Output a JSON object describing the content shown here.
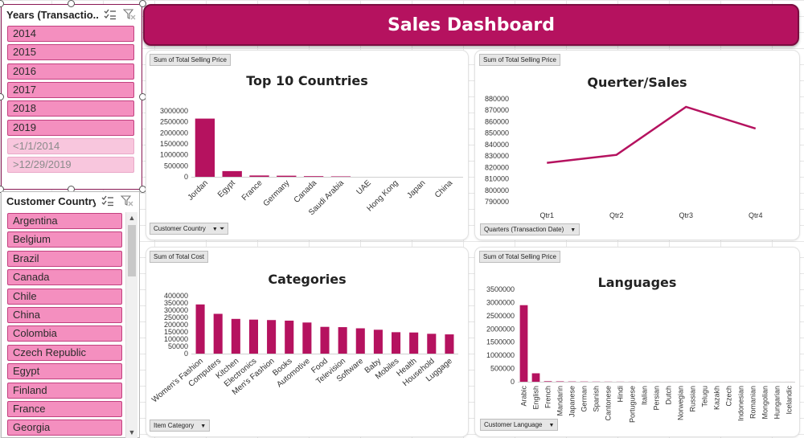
{
  "app": {
    "dashboard_title": "Sales Dashboard"
  },
  "colors": {
    "accent": "#b5125f",
    "slicer_item": "#f48fbf",
    "slicer_item_nodata": "#f8c6dd"
  },
  "years_slicer": {
    "title": "Years (Transactio...",
    "items": [
      "2014",
      "2015",
      "2016",
      "2017",
      "2018",
      "2019",
      "<1/1/2014",
      ">12/29/2019"
    ],
    "nodata_items": [
      "<1/1/2014",
      ">12/29/2019"
    ]
  },
  "country_slicer": {
    "title": "Customer Country",
    "items": [
      "Argentina",
      "Belgium",
      "Brazil",
      "Canada",
      "Chile",
      "China",
      "Colombia",
      "Czech Republic",
      "Egypt",
      "Finland",
      "France",
      "Georgia"
    ]
  },
  "icons": {
    "multiselect": "multi-select-icon",
    "clear_filter": "clear-filter-icon"
  },
  "chart_data": [
    {
      "type": "bar",
      "title": "Top 10 Countries",
      "value_field": "Sum of Total Selling Price",
      "axis_field": "Customer Country",
      "categories": [
        "Jordan",
        "Egypt",
        "France",
        "Germany",
        "Canada",
        "Saudi Arabia",
        "UAE",
        "Hong Kong",
        "Japan",
        "China"
      ],
      "values": [
        2650000,
        260000,
        60000,
        50000,
        30000,
        20000,
        0,
        0,
        0,
        0
      ],
      "yticks": [
        "3000000",
        "2500000",
        "2000000",
        "1500000",
        "1000000",
        "500000",
        "0"
      ],
      "ylim": [
        0,
        3000000
      ]
    },
    {
      "type": "line",
      "title": "Querter/Sales",
      "value_field": "Sum of Total Selling Price",
      "axis_field": "Quarters (Transaction Date)",
      "categories": [
        "Qtr1",
        "Qtr2",
        "Qtr3",
        "Qtr4"
      ],
      "values": [
        824000,
        831000,
        873000,
        854000
      ],
      "yticks": [
        "880000",
        "870000",
        "860000",
        "850000",
        "840000",
        "830000",
        "820000",
        "810000",
        "800000",
        "790000"
      ],
      "ylim": [
        790000,
        880000
      ]
    },
    {
      "type": "bar",
      "title": "Categories",
      "value_field": "Sum of Total Cost",
      "axis_field": "Item Category",
      "categories": [
        "Women's Fashion",
        "Computers",
        "Kitchen",
        "Electronics",
        "Men's Fashion",
        "Books",
        "Automotive",
        "Food",
        "Television",
        "Software",
        "Baby",
        "Mobiles",
        "Health",
        "Household",
        "Luggage"
      ],
      "values": [
        340000,
        275000,
        240000,
        235000,
        232000,
        228000,
        215000,
        185000,
        183000,
        175000,
        165000,
        148000,
        146000,
        137000,
        133000
      ],
      "yticks": [
        "400000",
        "350000",
        "300000",
        "250000",
        "200000",
        "150000",
        "100000",
        "50000",
        "0"
      ],
      "ylim": [
        0,
        400000
      ]
    },
    {
      "type": "bar",
      "title": "Languages",
      "value_field": "Sum of Total Selling Price",
      "axis_field": "Customer Language",
      "categories": [
        "Arabic",
        "English",
        "French",
        "Mandarin",
        "Japanese",
        "German",
        "Spanish",
        "Cantonese",
        "Hindi",
        "Portuguese",
        "Italian",
        "Persian",
        "Dutch",
        "Norwegian",
        "Russian",
        "Telugu",
        "Kazakh",
        "Czech",
        "Indonesian",
        "Romanian",
        "Mongolian",
        "Hungarian",
        "Icelandic"
      ],
      "values": [
        2900000,
        320000,
        20000,
        15000,
        10000,
        8000,
        6000,
        5000,
        4000,
        3000,
        2000,
        2000,
        1000,
        1000,
        1000,
        1000,
        1000,
        1000,
        1000,
        1000,
        1000,
        1000,
        1000
      ],
      "yticks": [
        "3500000",
        "3000000",
        "2500000",
        "2000000",
        "1500000",
        "1000000",
        "500000",
        "0"
      ],
      "ylim": [
        0,
        3500000
      ]
    }
  ]
}
